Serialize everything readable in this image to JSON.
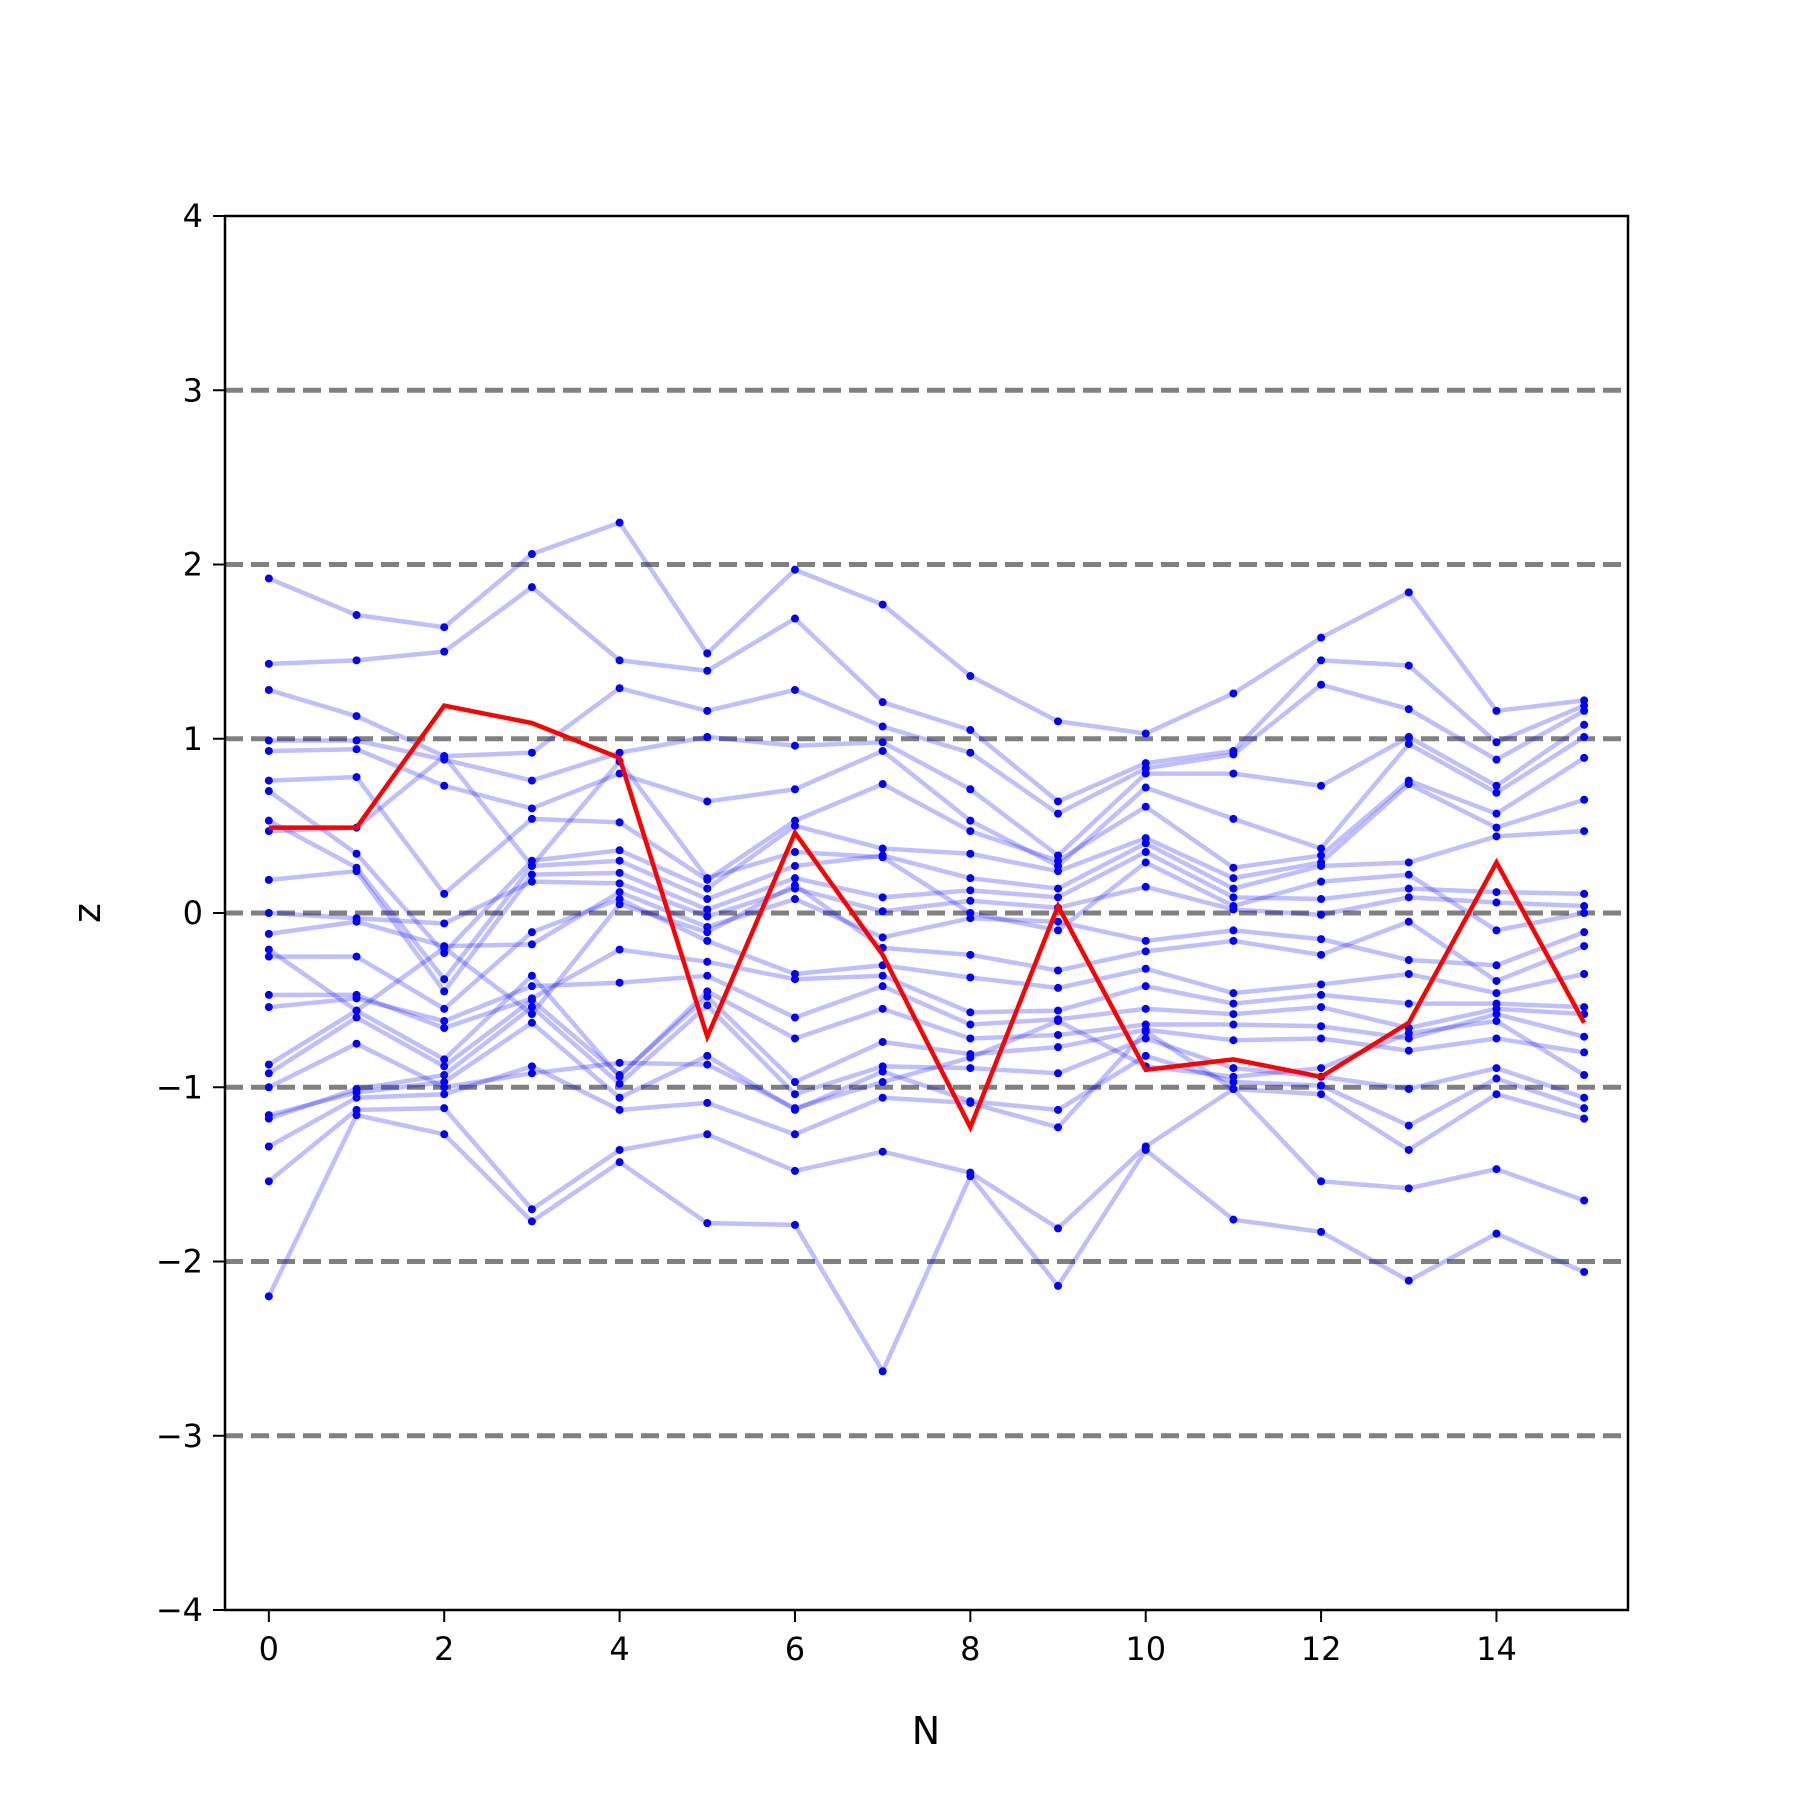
{
  "chart_data": {
    "type": "line",
    "title": "",
    "xlabel": "N",
    "ylabel": "z",
    "xlim": [
      -0.5,
      15.5
    ],
    "ylim": [
      -4,
      4
    ],
    "x_ticks": [
      0,
      2,
      4,
      6,
      8,
      10,
      12,
      14
    ],
    "x_tick_labels": [
      "0",
      "2",
      "4",
      "6",
      "8",
      "10",
      "12",
      "14"
    ],
    "y_ticks": [
      -4,
      -3,
      -2,
      -1,
      0,
      1,
      2,
      3,
      4
    ],
    "y_tick_labels": [
      "−4",
      "−3",
      "−2",
      "−1",
      "0",
      "1",
      "2",
      "3",
      "4"
    ],
    "reference_lines_y": [
      -3,
      -2,
      -1,
      0,
      1,
      2,
      3
    ],
    "grid": false,
    "legend": "none",
    "colors": {
      "samples": "#0000ff",
      "highlight": "#ff0000",
      "reference": "#808080"
    },
    "x": [
      0,
      1,
      2,
      3,
      4,
      5,
      6,
      7,
      8,
      9,
      10,
      11,
      12,
      13,
      14,
      15
    ],
    "highlight_series": [
      0.49,
      0.49,
      1.19,
      1.09,
      0.89,
      -0.71,
      0.46,
      -0.24,
      -1.23,
      0.04,
      -0.9,
      -0.84,
      -0.94,
      -0.63,
      0.29,
      -0.63
    ],
    "sample_series": [
      [
        1.92,
        1.71,
        1.64,
        2.06,
        2.24,
        1.49,
        1.97,
        1.77,
        1.36,
        1.1,
        1.03,
        1.26,
        1.58,
        1.84,
        1.16,
        1.22
      ],
      [
        -2.2,
        -1.16,
        -1.27,
        -1.77,
        -1.43,
        -1.78,
        -1.79,
        -2.63,
        -1.51,
        -2.14,
        -1.36,
        -1.76,
        -1.83,
        -2.11,
        -1.84,
        -2.06
      ],
      [
        1.43,
        1.45,
        1.5,
        1.87,
        1.45,
        1.39,
        1.69,
        1.21,
        1.05,
        0.64,
        0.86,
        0.93,
        1.45,
        1.42,
        0.98,
        1.19
      ],
      [
        -1.54,
        -1.13,
        -1.12,
        -1.7,
        -1.36,
        -1.27,
        -1.48,
        -1.37,
        -1.49,
        -1.81,
        -1.34,
        -1.01,
        -1.54,
        -1.58,
        -1.47,
        -1.65
      ],
      [
        1.28,
        1.13,
        0.9,
        0.92,
        1.29,
        1.16,
        1.28,
        1.07,
        0.92,
        0.57,
        0.83,
        0.91,
        1.31,
        1.17,
        0.88,
        1.16
      ],
      [
        -1.34,
        -1.06,
        -1.04,
        -0.88,
        -1.13,
        -1.09,
        -1.27,
        -1.06,
        -1.09,
        -1.23,
        -0.68,
        -1.01,
        -1.04,
        -1.36,
        -1.04,
        -1.18
      ],
      [
        0.99,
        0.99,
        0.88,
        0.76,
        0.92,
        1.01,
        0.96,
        0.98,
        0.71,
        0.33,
        0.8,
        0.8,
        0.73,
        1.01,
        0.73,
        1.08
      ],
      [
        -1.16,
        -1.03,
        -0.97,
        -0.63,
        -1.06,
        -0.82,
        -1.13,
        -0.91,
        -1.08,
        -1.13,
        -0.82,
        -0.97,
        -0.99,
        -1.22,
        -0.95,
        -1.12
      ],
      [
        0.93,
        0.94,
        0.73,
        0.6,
        0.8,
        0.64,
        0.71,
        0.93,
        0.53,
        0.27,
        0.72,
        0.54,
        0.37,
        0.97,
        0.69,
        1.01
      ],
      [
        -1.18,
        -1.01,
        -0.93,
        -0.54,
        -0.98,
        -0.53,
        -1.04,
        -0.88,
        -0.89,
        -0.92,
        -0.72,
        -0.89,
        -0.94,
        -1.01,
        -0.89,
        -1.06
      ],
      [
        0.76,
        0.78,
        0.11,
        0.54,
        0.52,
        0.19,
        0.53,
        0.74,
        0.47,
        0.3,
        0.61,
        0.26,
        0.33,
        0.76,
        0.57,
        0.89
      ],
      [
        -0.92,
        -0.6,
        -0.88,
        -0.5,
        -0.93,
        -0.48,
        -0.97,
        -0.74,
        -0.81,
        -0.77,
        -0.67,
        -0.73,
        -0.72,
        -0.79,
        -0.72,
        -0.8
      ],
      [
        0.7,
        0.34,
        -0.23,
        0.3,
        0.36,
        0.14,
        0.5,
        0.37,
        0.34,
        0.24,
        0.43,
        0.2,
        0.29,
        0.74,
        0.49,
        0.65
      ],
      [
        -0.87,
        -0.56,
        -0.84,
        -0.36,
        -0.94,
        -0.45,
        -0.72,
        -0.55,
        -0.72,
        -0.7,
        -0.64,
        -0.64,
        -0.65,
        -0.72,
        -0.58,
        -0.71
      ],
      [
        0.53,
        0.26,
        -0.38,
        0.27,
        0.3,
        0.08,
        0.27,
        0.33,
        0.2,
        0.14,
        0.4,
        0.14,
        0.27,
        0.29,
        0.44,
        0.47
      ],
      [
        -0.54,
        -0.49,
        -0.62,
        -0.42,
        -0.4,
        -0.36,
        -0.6,
        -0.42,
        -0.64,
        -0.61,
        -0.55,
        -0.58,
        -0.54,
        -0.66,
        -0.55,
        -0.58
      ],
      [
        0.19,
        0.24,
        -0.45,
        0.22,
        0.23,
        0.02,
        0.2,
        0.09,
        0.13,
        0.09,
        0.35,
        0.09,
        0.08,
        0.14,
        0.12,
        0.11
      ],
      [
        -0.47,
        -0.47,
        -0.66,
        -0.49,
        -0.21,
        -0.28,
        -0.38,
        -0.36,
        -0.57,
        -0.56,
        -0.42,
        -0.52,
        -0.47,
        -0.52,
        -0.52,
        -0.54
      ],
      [
        0.0,
        -0.03,
        -0.06,
        0.18,
        0.17,
        -0.02,
        0.14,
        0.01,
        0.07,
        0.03,
        0.15,
        0.02,
        -0.01,
        0.09,
        0.06,
        0.04
      ],
      [
        -0.25,
        -0.25,
        -0.55,
        -0.11,
        0.08,
        -0.16,
        -0.35,
        -0.3,
        -0.37,
        -0.43,
        -0.32,
        -0.46,
        -0.41,
        -0.35,
        -0.46,
        -0.35
      ],
      [
        -0.12,
        -0.05,
        -0.19,
        -0.18,
        0.12,
        -0.08,
        0.08,
        -0.14,
        -0.03,
        -0.05,
        -0.16,
        -0.1,
        -0.15,
        -0.27,
        -0.3,
        -0.11
      ],
      [
        -0.21,
        -0.56,
        -0.2,
        -0.58,
        0.05,
        -0.11,
        0.16,
        -0.2,
        -0.24,
        -0.33,
        -0.22,
        -0.16,
        -0.24,
        -0.05,
        -0.39,
        -0.19
      ],
      [
        0.47,
        0.49,
        0.9,
        0.27,
        0.87,
        0.2,
        0.35,
        0.32,
        0.0,
        -0.1,
        0.29,
        0.04,
        0.18,
        0.22,
        -0.1,
        0.0
      ],
      [
        -1.0,
        -0.75,
        -1.0,
        -0.92,
        -0.86,
        -0.87,
        -1.12,
        -0.97,
        -0.83,
        -0.62,
        -0.88,
        -0.94,
        -0.89,
        -0.69,
        -0.62,
        -0.93
      ]
    ]
  }
}
